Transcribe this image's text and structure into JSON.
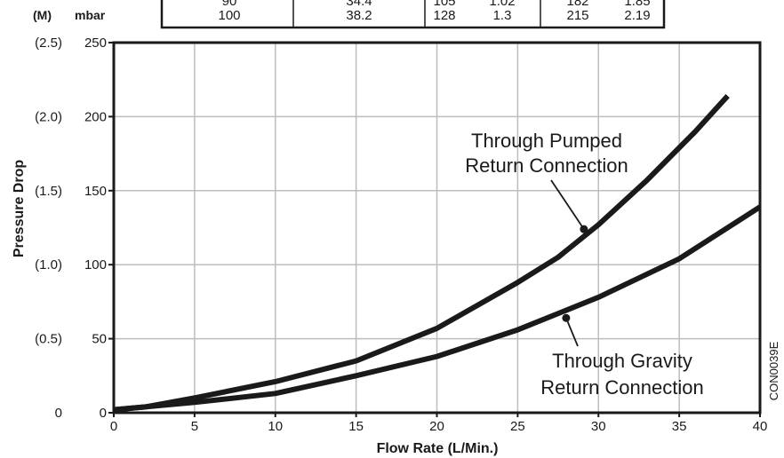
{
  "chart_data": {
    "type": "line",
    "xlabel": "Flow Rate (L/Min.)",
    "ylabel": "Pressure Drop",
    "y_unit_label_primary": "mbar",
    "y_unit_label_secondary": "(M)",
    "xlim": [
      0,
      40
    ],
    "ylim": [
      0,
      250
    ],
    "grid": true,
    "x_ticks": [
      "0",
      "5",
      "10",
      "15",
      "20",
      "25",
      "30",
      "35",
      "40"
    ],
    "y_ticks_mbar": [
      "0",
      "50",
      "100",
      "150",
      "200",
      "250"
    ],
    "y_ticks_m": [
      "0",
      "(0.5)",
      "(1.0)",
      "(1.5)",
      "(2.0)",
      "(2.5)"
    ],
    "series": [
      {
        "name": "Through Pumped Return Connection",
        "x": [
          0,
          2,
          5,
          10,
          15,
          20,
          25,
          27.5,
          30,
          33,
          36,
          38
        ],
        "y": [
          2,
          4,
          10,
          21,
          35,
          57,
          88,
          105,
          127,
          157,
          190,
          214
        ]
      },
      {
        "name": "Through Gravity Return Connection",
        "x": [
          0,
          5,
          10,
          15,
          20,
          25,
          30,
          35,
          40
        ],
        "y": [
          2,
          7,
          13,
          25,
          38,
          56,
          78,
          104,
          139
        ]
      }
    ],
    "annotations": [
      {
        "lines": [
          "Through Pumped",
          "Return Connection"
        ]
      },
      {
        "lines": [
          "Through Gravity",
          "Return Connection"
        ]
      }
    ],
    "code": "CON0039E",
    "table_rows": [
      [
        "100",
        "38.2",
        "128",
        "1.3",
        "215",
        "2.19"
      ]
    ],
    "table_partial_row": [
      "90",
      "34.4",
      "105",
      "1.02",
      "182",
      "1.85"
    ]
  },
  "colors": {
    "line": "#1a1a1a",
    "grid": "#bdbdbd",
    "frame": "#1a1a1a"
  }
}
